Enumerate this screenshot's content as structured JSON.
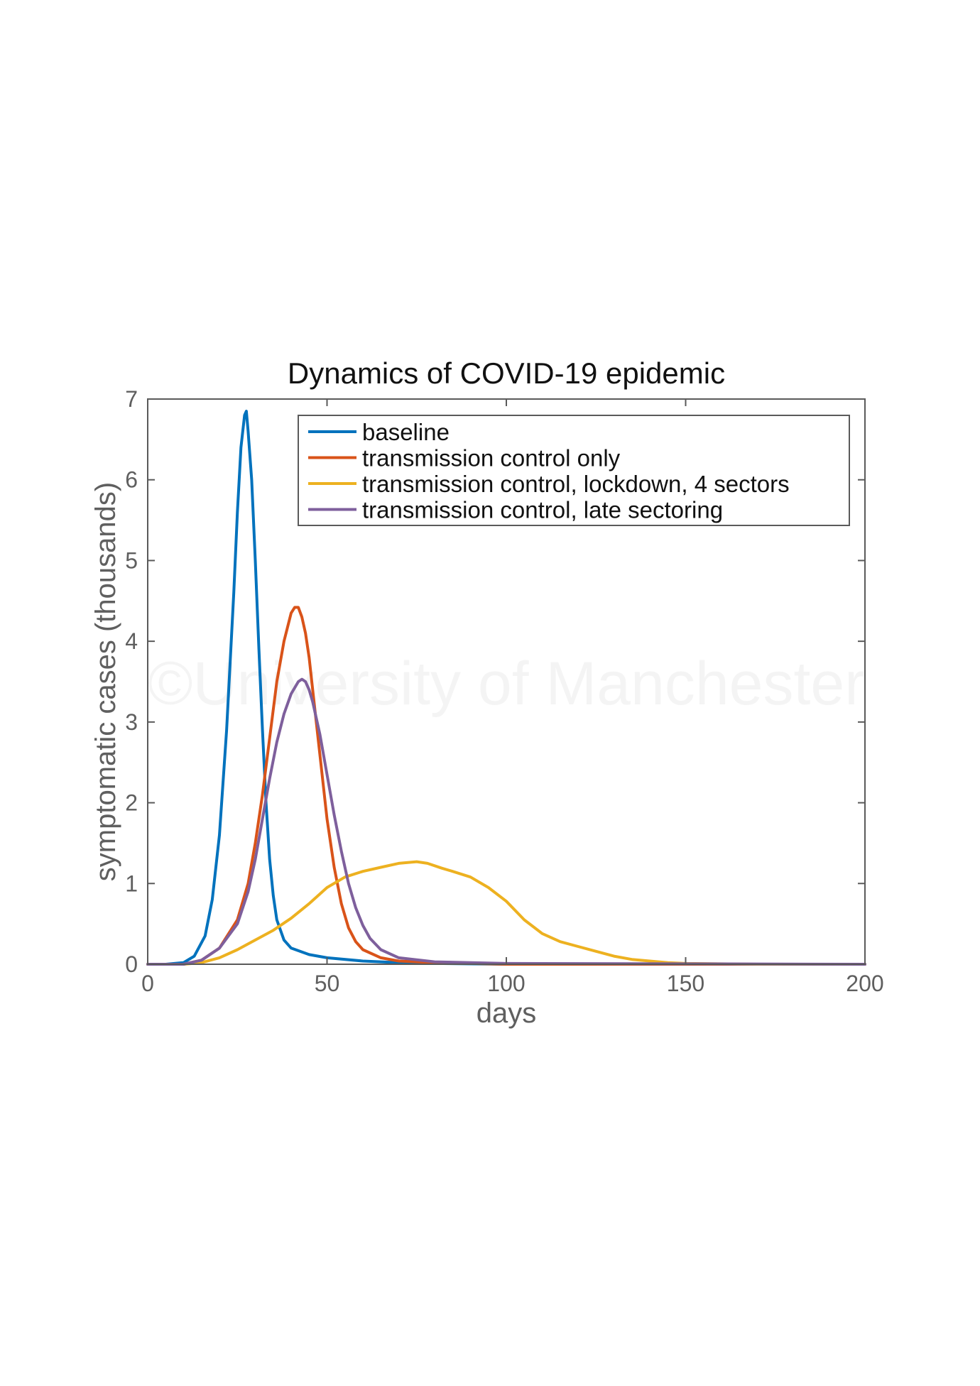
{
  "watermark": "©University of Manchester",
  "chart_data": {
    "type": "line",
    "title": "Dynamics of COVID-19 epidemic",
    "xlabel": "days",
    "ylabel": "symptomatic cases (thousands)",
    "xlim": [
      0,
      200
    ],
    "ylim": [
      0,
      7
    ],
    "xticks": [
      0,
      50,
      100,
      150,
      200
    ],
    "yticks": [
      0,
      1,
      2,
      3,
      4,
      5,
      6,
      7
    ],
    "grid": false,
    "legend_position": "top-right",
    "series": [
      {
        "name": "baseline",
        "color": "#0072BD",
        "points": [
          [
            0,
            0
          ],
          [
            5,
            0
          ],
          [
            10,
            0.02
          ],
          [
            13,
            0.1
          ],
          [
            16,
            0.35
          ],
          [
            18,
            0.8
          ],
          [
            20,
            1.6
          ],
          [
            22,
            2.9
          ],
          [
            24,
            4.6
          ],
          [
            25,
            5.6
          ],
          [
            26,
            6.4
          ],
          [
            27,
            6.8
          ],
          [
            27.5,
            6.85
          ],
          [
            28,
            6.6
          ],
          [
            29,
            6.0
          ],
          [
            30,
            5.0
          ],
          [
            31,
            3.9
          ],
          [
            32,
            2.9
          ],
          [
            33,
            2.0
          ],
          [
            34,
            1.3
          ],
          [
            35,
            0.85
          ],
          [
            36,
            0.55
          ],
          [
            38,
            0.3
          ],
          [
            40,
            0.2
          ],
          [
            45,
            0.12
          ],
          [
            50,
            0.08
          ],
          [
            60,
            0.04
          ],
          [
            70,
            0.02
          ],
          [
            80,
            0.01
          ],
          [
            100,
            0
          ],
          [
            200,
            0
          ]
        ]
      },
      {
        "name": "transmission control only",
        "color": "#D95319",
        "points": [
          [
            0,
            0
          ],
          [
            10,
            0
          ],
          [
            15,
            0.05
          ],
          [
            20,
            0.2
          ],
          [
            25,
            0.55
          ],
          [
            28,
            1.0
          ],
          [
            30,
            1.5
          ],
          [
            32,
            2.1
          ],
          [
            34,
            2.8
          ],
          [
            36,
            3.5
          ],
          [
            38,
            4.0
          ],
          [
            40,
            4.35
          ],
          [
            41,
            4.42
          ],
          [
            42,
            4.42
          ],
          [
            43,
            4.3
          ],
          [
            44,
            4.1
          ],
          [
            45,
            3.8
          ],
          [
            46,
            3.4
          ],
          [
            48,
            2.6
          ],
          [
            50,
            1.8
          ],
          [
            52,
            1.2
          ],
          [
            54,
            0.75
          ],
          [
            56,
            0.45
          ],
          [
            58,
            0.28
          ],
          [
            60,
            0.18
          ],
          [
            65,
            0.08
          ],
          [
            70,
            0.04
          ],
          [
            80,
            0.02
          ],
          [
            100,
            0
          ],
          [
            200,
            0
          ]
        ]
      },
      {
        "name": "transmission control, lockdown, 4 sectors",
        "color": "#EDB120",
        "points": [
          [
            0,
            0
          ],
          [
            10,
            0
          ],
          [
            15,
            0.02
          ],
          [
            20,
            0.08
          ],
          [
            25,
            0.18
          ],
          [
            30,
            0.3
          ],
          [
            35,
            0.42
          ],
          [
            40,
            0.57
          ],
          [
            45,
            0.75
          ],
          [
            50,
            0.95
          ],
          [
            55,
            1.08
          ],
          [
            60,
            1.15
          ],
          [
            65,
            1.2
          ],
          [
            70,
            1.25
          ],
          [
            75,
            1.27
          ],
          [
            78,
            1.25
          ],
          [
            82,
            1.19
          ],
          [
            85,
            1.15
          ],
          [
            90,
            1.08
          ],
          [
            95,
            0.95
          ],
          [
            100,
            0.78
          ],
          [
            105,
            0.55
          ],
          [
            110,
            0.38
          ],
          [
            115,
            0.28
          ],
          [
            120,
            0.22
          ],
          [
            125,
            0.16
          ],
          [
            130,
            0.1
          ],
          [
            135,
            0.06
          ],
          [
            140,
            0.04
          ],
          [
            145,
            0.02
          ],
          [
            150,
            0.01
          ],
          [
            160,
            0.005
          ],
          [
            170,
            0
          ],
          [
            200,
            0
          ]
        ]
      },
      {
        "name": "transmission control, late sectoring",
        "color": "#7E5F9C",
        "points": [
          [
            0,
            0
          ],
          [
            10,
            0
          ],
          [
            15,
            0.05
          ],
          [
            20,
            0.2
          ],
          [
            25,
            0.5
          ],
          [
            28,
            0.9
          ],
          [
            30,
            1.3
          ],
          [
            32,
            1.8
          ],
          [
            34,
            2.3
          ],
          [
            36,
            2.75
          ],
          [
            38,
            3.1
          ],
          [
            40,
            3.35
          ],
          [
            42,
            3.5
          ],
          [
            43,
            3.53
          ],
          [
            44,
            3.5
          ],
          [
            45,
            3.4
          ],
          [
            46,
            3.25
          ],
          [
            48,
            2.85
          ],
          [
            50,
            2.35
          ],
          [
            52,
            1.85
          ],
          [
            54,
            1.4
          ],
          [
            56,
            1.0
          ],
          [
            58,
            0.7
          ],
          [
            60,
            0.48
          ],
          [
            62,
            0.32
          ],
          [
            65,
            0.18
          ],
          [
            70,
            0.08
          ],
          [
            80,
            0.03
          ],
          [
            100,
            0.01
          ],
          [
            200,
            0
          ]
        ]
      }
    ]
  }
}
